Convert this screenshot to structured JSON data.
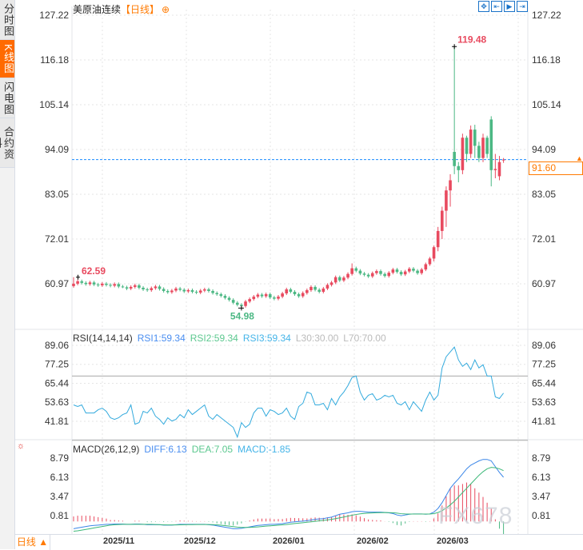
{
  "sidebar": {
    "tabs": [
      {
        "label": "分时图",
        "active": false
      },
      {
        "label": "K线图",
        "active": true
      },
      {
        "label": "闪电图",
        "active": false
      },
      {
        "label": "合约资料",
        "active": false
      }
    ]
  },
  "header": {
    "title": "美原油连续",
    "period": "【日线】",
    "zoom_icon": "zoom-in-icon",
    "tools": [
      "crosshair-icon",
      "shrink-icon",
      "expand-icon",
      "jump-latest-icon"
    ]
  },
  "current_price": "91.60",
  "colors": {
    "up": "#e84a5f",
    "down": "#4cb884",
    "accent": "#ff7a00",
    "price_line": "#1a8cff",
    "rsi": "#33aadd",
    "diff": "#3a86e8",
    "dea": "#3cb878"
  },
  "price_axis": {
    "ticks": [
      "127.22",
      "116.18",
      "105.14",
      "94.09",
      "83.05",
      "72.01",
      "60.97"
    ]
  },
  "annotations": {
    "high": "119.48",
    "low": "54.98",
    "start": "62.59"
  },
  "rsi": {
    "label": "RSI(14,14,14)",
    "rsi1": "RSI1:59.34",
    "rsi2": "RSI2:59.34",
    "rsi3": "RSI3:59.34",
    "l30": "L30:30.00",
    "l70": "L70:70.00",
    "ticks": [
      "89.06",
      "77.25",
      "65.44",
      "53.63",
      "41.81"
    ]
  },
  "macd": {
    "label": "MACD(26,12,9)",
    "diff_label": "DIFF:6.13",
    "dea_label": "DEA:7.05",
    "macd_label": "MACD:-1.85",
    "ticks": [
      "8.79",
      "6.13",
      "3.47",
      "0.81"
    ]
  },
  "bottom": {
    "period_label": "日线 ▲",
    "dates": [
      "2025/11",
      "2025/12",
      "2026/01",
      "2026/02",
      "2026/03"
    ]
  },
  "watermark": "FX678",
  "chart_data": {
    "type": "candlestick",
    "ylim": [
      60.97,
      127.22
    ],
    "open": [
      60.4,
      61.0,
      61.6,
      61.2,
      60.9,
      61.3,
      60.8,
      60.6,
      61.0,
      60.7,
      60.5,
      60.9,
      60.3,
      60.1,
      59.8,
      60.2,
      60.6,
      60.0,
      59.6,
      59.4,
      59.9,
      60.3,
      59.7,
      59.2,
      58.9,
      59.3,
      59.8,
      59.5,
      59.1,
      59.4,
      59.0,
      58.8,
      59.3,
      59.6,
      59.2,
      58.7,
      58.4,
      58.0,
      57.5,
      57.0,
      56.3,
      55.8,
      55.5,
      56.6,
      57.2,
      57.8,
      58.3,
      57.9,
      58.4,
      57.6,
      57.3,
      57.8,
      58.6,
      59.6,
      59.0,
      58.4,
      57.9,
      58.7,
      59.4,
      60.2,
      59.5,
      59.0,
      59.8,
      60.7,
      61.3,
      62.6,
      61.8,
      62.5,
      63.4,
      64.8,
      64.2,
      63.5,
      63.2,
      62.8,
      63.6,
      64.1,
      63.4,
      62.9,
      63.7,
      64.5,
      63.9,
      63.3,
      64.0,
      64.7,
      64.2,
      63.6,
      64.5,
      65.8,
      67.2,
      70.0,
      74.0,
      79.0,
      84.0,
      93.5,
      90.0,
      89.0,
      97.0,
      93.0,
      99.0,
      95.0,
      92.0,
      97.0,
      101.5,
      89.0,
      87.5,
      91.4
    ],
    "high": [
      62.59,
      62.0,
      62.0,
      61.6,
      61.7,
      61.7,
      61.2,
      61.4,
      61.4,
      61.1,
      61.3,
      61.3,
      60.7,
      60.5,
      60.6,
      61.0,
      61.0,
      60.4,
      60.0,
      60.3,
      60.7,
      60.7,
      60.1,
      59.6,
      59.7,
      60.2,
      60.2,
      59.9,
      59.8,
      59.8,
      59.4,
      59.7,
      60.0,
      60.0,
      59.6,
      59.1,
      58.8,
      58.4,
      57.9,
      57.4,
      56.7,
      56.2,
      57.0,
      57.6,
      58.2,
      58.7,
      58.7,
      58.8,
      58.8,
      58.0,
      58.2,
      59.0,
      60.0,
      60.0,
      59.4,
      58.8,
      59.1,
      59.8,
      60.6,
      60.6,
      59.9,
      60.2,
      61.1,
      61.7,
      63.0,
      63.0,
      62.9,
      63.8,
      66.0,
      65.2,
      64.6,
      63.9,
      63.6,
      64.0,
      64.5,
      64.5,
      63.8,
      64.1,
      64.9,
      64.9,
      64.3,
      64.4,
      65.1,
      65.1,
      64.6,
      64.9,
      66.2,
      67.6,
      70.4,
      75.0,
      80.0,
      85.0,
      88.0,
      119.48,
      91.0,
      98.0,
      97.5,
      100.0,
      100.2,
      96.0,
      98.0,
      97.5,
      102.3,
      93.0,
      92.5,
      92.0
    ],
    "low": [
      60.0,
      60.6,
      60.8,
      60.5,
      60.5,
      60.4,
      60.2,
      60.2,
      60.3,
      60.1,
      60.1,
      59.9,
      59.9,
      59.4,
      59.4,
      59.8,
      59.6,
      59.2,
      59.0,
      59.0,
      59.5,
      59.3,
      58.8,
      58.5,
      58.5,
      58.9,
      59.1,
      58.7,
      58.7,
      58.6,
      58.4,
      58.4,
      58.9,
      58.8,
      58.3,
      58.0,
      57.6,
      57.1,
      56.6,
      55.9,
      55.4,
      54.98,
      55.1,
      56.2,
      56.8,
      57.4,
      57.5,
      57.5,
      57.2,
      56.9,
      56.9,
      57.4,
      58.2,
      58.6,
      58.0,
      57.5,
      57.5,
      58.3,
      59.0,
      59.1,
      58.6,
      58.6,
      59.4,
      60.3,
      60.9,
      61.4,
      61.4,
      62.1,
      63.0,
      63.8,
      63.1,
      62.8,
      62.4,
      62.4,
      63.2,
      63.0,
      62.5,
      62.5,
      63.3,
      63.5,
      62.9,
      62.9,
      63.6,
      63.8,
      63.2,
      63.2,
      64.1,
      65.4,
      66.5,
      69.0,
      72.0,
      75.0,
      80.0,
      88.0,
      86.0,
      88.0,
      91.0,
      92.0,
      92.0,
      91.0,
      91.0,
      92.0,
      85.0,
      87.0,
      86.5,
      90.8
    ],
    "close": [
      61.0,
      61.6,
      61.2,
      60.9,
      61.3,
      60.8,
      60.6,
      61.0,
      60.7,
      60.5,
      60.9,
      60.3,
      60.1,
      59.8,
      60.2,
      60.6,
      60.0,
      59.6,
      59.4,
      59.9,
      60.3,
      59.7,
      59.2,
      58.9,
      59.3,
      59.8,
      59.5,
      59.1,
      59.4,
      59.0,
      58.8,
      59.3,
      59.6,
      59.2,
      58.7,
      58.4,
      58.0,
      57.5,
      57.0,
      56.3,
      55.8,
      55.5,
      56.6,
      57.2,
      57.8,
      58.3,
      57.9,
      58.4,
      57.6,
      57.3,
      57.8,
      58.6,
      59.6,
      59.0,
      58.4,
      57.9,
      58.7,
      59.4,
      60.2,
      59.5,
      59.0,
      59.8,
      60.7,
      61.3,
      62.6,
      61.8,
      62.5,
      63.4,
      64.8,
      64.2,
      63.5,
      63.2,
      62.8,
      63.6,
      64.1,
      63.4,
      62.9,
      63.7,
      64.5,
      63.9,
      63.3,
      64.0,
      64.7,
      64.2,
      63.6,
      64.5,
      65.8,
      67.2,
      70.0,
      74.0,
      79.0,
      84.0,
      86.5,
      90.0,
      89.0,
      97.0,
      93.0,
      99.0,
      95.0,
      92.0,
      97.0,
      93.0,
      89.0,
      89.3,
      91.0,
      91.6
    ],
    "rsi_values": [
      52,
      51,
      52,
      47,
      47,
      47,
      49,
      50,
      48,
      44,
      43,
      44,
      46,
      47,
      52,
      40,
      41,
      48,
      47,
      50,
      45,
      43,
      40,
      44,
      42,
      43,
      46,
      44,
      49,
      46,
      48,
      50,
      52,
      45,
      43,
      46,
      44,
      42,
      40,
      38,
      32,
      41,
      38,
      40,
      47,
      50,
      50,
      45,
      49,
      48,
      46,
      47,
      50,
      45,
      43,
      51,
      53,
      60,
      59,
      52,
      52,
      53,
      49,
      56,
      52,
      57,
      60,
      64,
      69,
      70,
      60,
      55,
      58,
      59,
      55,
      56,
      58,
      57,
      58,
      53,
      52,
      54,
      49,
      54,
      51,
      48,
      55,
      60,
      55,
      58,
      75,
      82,
      85,
      88,
      80,
      76,
      78,
      74,
      80,
      75,
      77,
      70,
      70,
      57,
      56,
      59.34
    ],
    "rsi_ylim": [
      30,
      89.06
    ],
    "diff": [
      -1.0,
      -0.9,
      -0.8,
      -0.7,
      -0.6,
      -0.55,
      -0.5,
      -0.45,
      -0.4,
      -0.4,
      -0.35,
      -0.35,
      -0.35,
      -0.4,
      -0.4,
      -0.35,
      -0.35,
      -0.4,
      -0.45,
      -0.45,
      -0.45,
      -0.45,
      -0.5,
      -0.5,
      -0.5,
      -0.45,
      -0.4,
      -0.4,
      -0.4,
      -0.4,
      -0.4,
      -0.4,
      -0.4,
      -0.45,
      -0.5,
      -0.6,
      -0.7,
      -0.8,
      -0.9,
      -1.0,
      -1.0,
      -0.95,
      -0.85,
      -0.75,
      -0.65,
      -0.55,
      -0.5,
      -0.45,
      -0.4,
      -0.4,
      -0.35,
      -0.3,
      -0.2,
      -0.1,
      -0.05,
      0.0,
      0.05,
      0.1,
      0.2,
      0.3,
      0.35,
      0.4,
      0.5,
      0.6,
      0.8,
      1.0,
      1.1,
      1.2,
      1.35,
      1.4,
      1.4,
      1.35,
      1.3,
      1.3,
      1.3,
      1.3,
      1.25,
      1.2,
      1.1,
      0.9,
      0.8,
      0.9,
      1.0,
      1.05,
      1.05,
      1.05,
      1.0,
      1.05,
      1.3,
      1.8,
      2.6,
      3.6,
      4.6,
      5.3,
      5.9,
      6.6,
      7.3,
      7.8,
      8.1,
      8.4,
      8.6,
      8.6,
      8.4,
      7.6,
      6.8,
      6.13
    ],
    "dea": [
      -1.35,
      -1.3,
      -1.2,
      -1.1,
      -1.0,
      -0.9,
      -0.8,
      -0.7,
      -0.6,
      -0.5,
      -0.45,
      -0.42,
      -0.4,
      -0.4,
      -0.4,
      -0.4,
      -0.4,
      -0.4,
      -0.4,
      -0.4,
      -0.42,
      -0.44,
      -0.46,
      -0.48,
      -0.48,
      -0.48,
      -0.47,
      -0.45,
      -0.44,
      -0.43,
      -0.42,
      -0.42,
      -0.42,
      -0.42,
      -0.44,
      -0.47,
      -0.52,
      -0.58,
      -0.65,
      -0.72,
      -0.78,
      -0.82,
      -0.83,
      -0.82,
      -0.79,
      -0.75,
      -0.7,
      -0.65,
      -0.6,
      -0.56,
      -0.52,
      -0.47,
      -0.42,
      -0.35,
      -0.29,
      -0.23,
      -0.17,
      -0.11,
      -0.05,
      0.02,
      0.09,
      0.15,
      0.22,
      0.3,
      0.4,
      0.5,
      0.62,
      0.74,
      0.86,
      0.97,
      1.06,
      1.12,
      1.16,
      1.19,
      1.21,
      1.23,
      1.24,
      1.23,
      1.21,
      1.15,
      1.08,
      1.04,
      1.03,
      1.03,
      1.03,
      1.03,
      1.03,
      1.03,
      1.09,
      1.24,
      1.49,
      1.86,
      2.3,
      2.8,
      3.4,
      4.0,
      4.6,
      5.2,
      5.8,
      6.4,
      6.9,
      7.3,
      7.5,
      7.45,
      7.3,
      7.05
    ],
    "macd_ylim": [
      -1.85,
      8.79
    ]
  }
}
